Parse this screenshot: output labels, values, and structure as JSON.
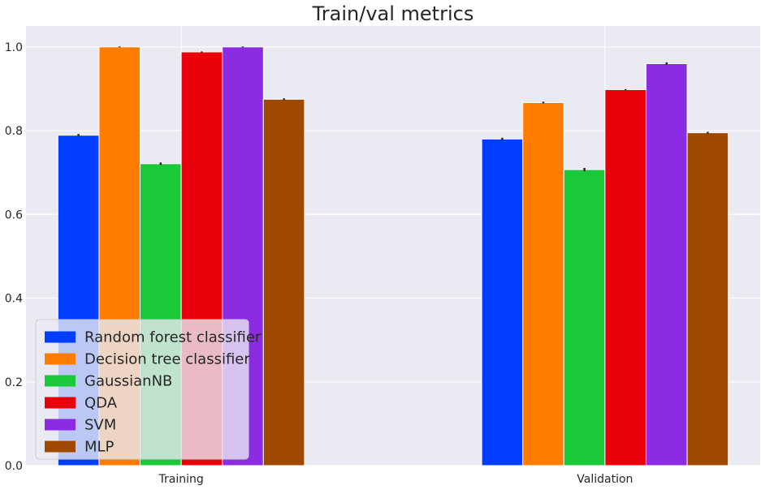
{
  "chart_data": {
    "type": "bar",
    "title": "Train/val metrics",
    "xlabel": "",
    "ylabel": "",
    "categories": [
      "Training",
      "Validation"
    ],
    "ylim": [
      0,
      1.05
    ],
    "yticks": [
      0.0,
      0.2,
      0.4,
      0.6,
      0.8,
      1.0
    ],
    "ytick_labels": [
      "0.0",
      "0.2",
      "0.4",
      "0.6",
      "0.8",
      "1.0"
    ],
    "grid": true,
    "legend_position": "lower-left",
    "series": [
      {
        "name": "Random forest classifier",
        "color": "#023eff",
        "values": [
          0.789,
          0.78
        ],
        "errors": [
          0.003,
          0.003
        ]
      },
      {
        "name": "Decision tree classifier",
        "color": "#ff7c00",
        "values": [
          1.0,
          0.867
        ],
        "errors": [
          0.001,
          0.002
        ]
      },
      {
        "name": "GaussianNB",
        "color": "#1ac938",
        "values": [
          0.721,
          0.707
        ],
        "errors": [
          0.003,
          0.004
        ]
      },
      {
        "name": "QDA",
        "color": "#e8000b",
        "values": [
          0.988,
          0.898
        ],
        "errors": [
          0.001,
          0.001
        ]
      },
      {
        "name": "SVM",
        "color": "#8b2be2",
        "values": [
          1.0,
          0.96
        ],
        "errors": [
          0.001,
          0.003
        ]
      },
      {
        "name": "MLP",
        "color": "#9f4800",
        "values": [
          0.875,
          0.795
        ],
        "errors": [
          0.002,
          0.002
        ]
      }
    ]
  }
}
